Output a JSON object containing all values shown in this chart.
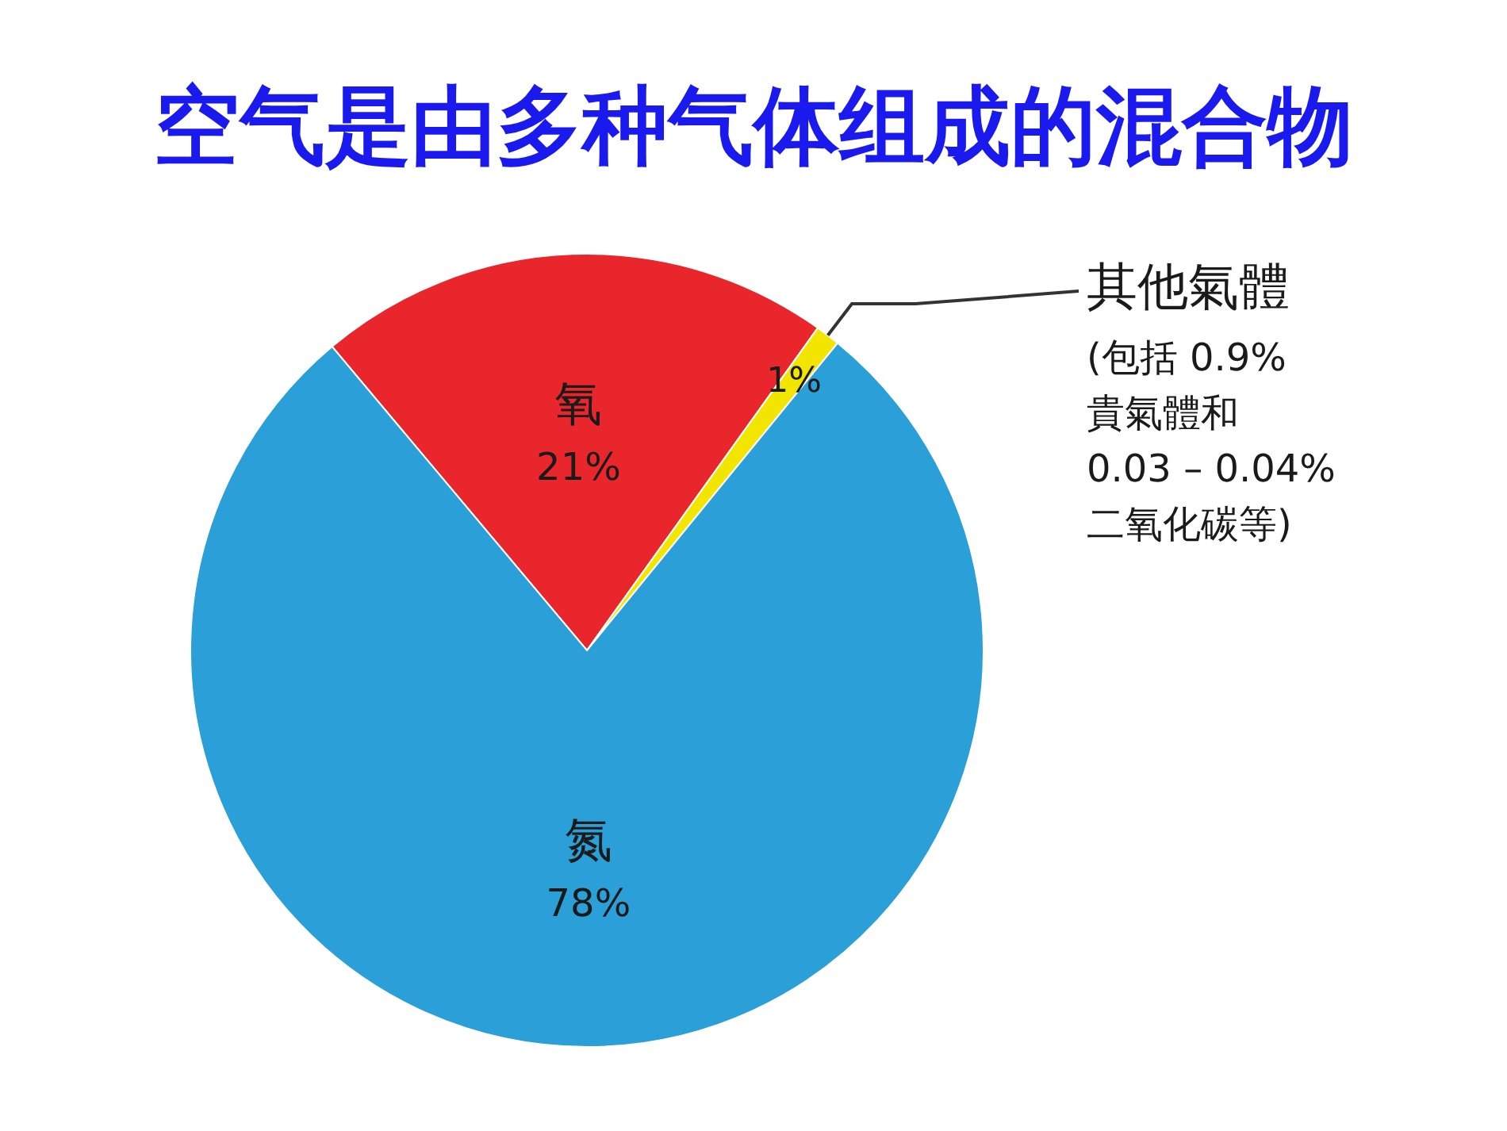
{
  "chart_data": {
    "type": "pie",
    "title": "空气是由多种气体组成的混合物",
    "categories": [
      "氧",
      "其他氣體",
      "氮"
    ],
    "values": [
      21,
      1,
      78
    ],
    "colors": [
      "#e8262b",
      "#f2e600",
      "#2a9fd8"
    ],
    "value_labels": [
      "21%",
      "1%",
      "78%"
    ],
    "annotations": [
      "(包括 0.9% 貴氣體和 0.03 – 0.04% 二氧化碳等)"
    ]
  }
}
